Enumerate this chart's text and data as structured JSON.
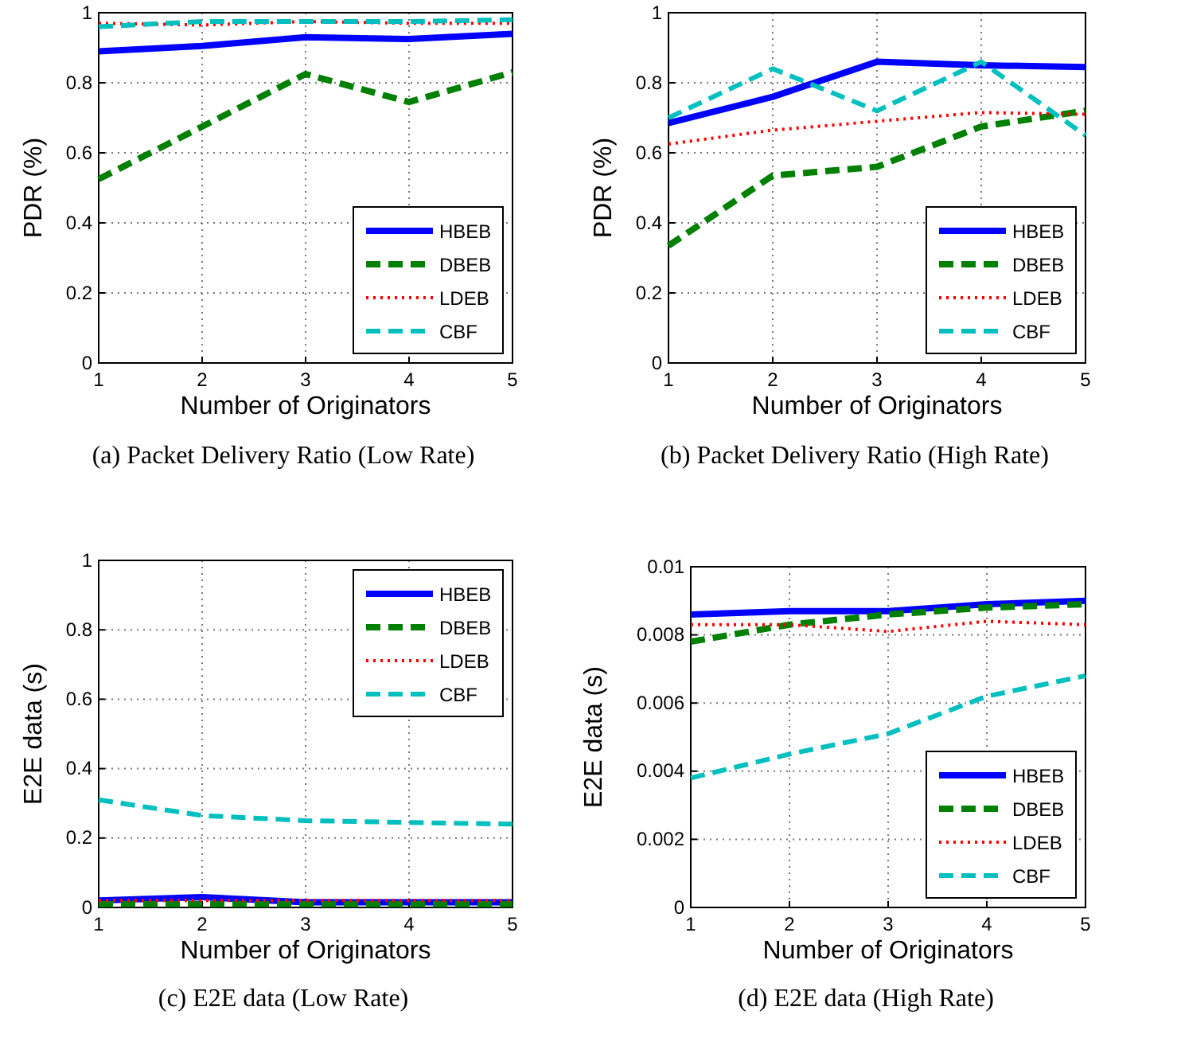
{
  "chart_data": [
    {
      "type": "line",
      "title": "(a) Packet Delivery Ratio (Low Rate)",
      "xlabel": "Number of Originators",
      "ylabel": "PDR (%)",
      "x": [
        1,
        2,
        3,
        4,
        5
      ],
      "xlim": [
        1,
        5
      ],
      "xticks": [
        1,
        2,
        3,
        4,
        5
      ],
      "ylim": [
        0,
        1
      ],
      "yticks": [
        0,
        0.2,
        0.4,
        0.6,
        0.8,
        1
      ],
      "grid": true,
      "legend": "bottom right",
      "series": [
        {
          "name": "HBEB",
          "color": "#0000ff",
          "line_style": "solid",
          "values": [
            0.89,
            0.905,
            0.93,
            0.925,
            0.94
          ]
        },
        {
          "name": "DBEB",
          "color": "#008000",
          "line_style": "dashed",
          "values": [
            0.525,
            0.675,
            0.825,
            0.745,
            0.83
          ]
        },
        {
          "name": "LDEB",
          "color": "#ff0000",
          "line_style": "dotted",
          "values": [
            0.97,
            0.965,
            0.975,
            0.97,
            0.97
          ]
        },
        {
          "name": "CBF",
          "color": "#00bfbf",
          "line_style": "dashed",
          "values": [
            0.96,
            0.975,
            0.975,
            0.975,
            0.98
          ]
        }
      ]
    },
    {
      "type": "line",
      "title": "(b) Packet Delivery Ratio (High Rate)",
      "xlabel": "Number of Originators",
      "ylabel": "PDR (%)",
      "x": [
        1,
        2,
        3,
        4,
        5
      ],
      "xlim": [
        1,
        5
      ],
      "xticks": [
        1,
        2,
        3,
        4,
        5
      ],
      "ylim": [
        0,
        1
      ],
      "yticks": [
        0,
        0.2,
        0.4,
        0.6,
        0.8,
        1
      ],
      "grid": true,
      "legend": "bottom right",
      "series": [
        {
          "name": "HBEB",
          "color": "#0000ff",
          "line_style": "solid",
          "values": [
            0.685,
            0.76,
            0.86,
            0.85,
            0.845
          ]
        },
        {
          "name": "DBEB",
          "color": "#008000",
          "line_style": "dashed",
          "values": [
            0.335,
            0.535,
            0.56,
            0.675,
            0.72
          ]
        },
        {
          "name": "LDEB",
          "color": "#ff0000",
          "line_style": "dotted",
          "values": [
            0.625,
            0.665,
            0.69,
            0.715,
            0.71
          ]
        },
        {
          "name": "CBF",
          "color": "#00bfbf",
          "line_style": "dashed",
          "values": [
            0.7,
            0.84,
            0.72,
            0.86,
            0.65
          ]
        }
      ]
    },
    {
      "type": "line",
      "title": "(c) E2E data (Low Rate)",
      "xlabel": "Number of Originators",
      "ylabel": "E2E data (s)",
      "x": [
        1,
        2,
        3,
        4,
        5
      ],
      "xlim": [
        1,
        5
      ],
      "xticks": [
        1,
        2,
        3,
        4,
        5
      ],
      "ylim": [
        0,
        1
      ],
      "yticks": [
        0,
        0.2,
        0.4,
        0.6,
        0.8,
        1
      ],
      "grid": true,
      "legend": "top right",
      "series": [
        {
          "name": "HBEB",
          "color": "#0000ff",
          "line_style": "solid",
          "values": [
            0.02,
            0.03,
            0.015,
            0.015,
            0.015
          ]
        },
        {
          "name": "DBEB",
          "color": "#008000",
          "line_style": "dashed",
          "values": [
            0.01,
            0.01,
            0.01,
            0.01,
            0.01
          ]
        },
        {
          "name": "LDEB",
          "color": "#ff0000",
          "line_style": "dotted",
          "values": [
            0.02,
            0.02,
            0.02,
            0.02,
            0.02
          ]
        },
        {
          "name": "CBF",
          "color": "#00bfbf",
          "line_style": "dashed",
          "values": [
            0.31,
            0.265,
            0.25,
            0.245,
            0.24
          ]
        }
      ]
    },
    {
      "type": "line",
      "title": "(d) E2E data (High Rate)",
      "xlabel": "Number of Originators",
      "ylabel": "E2E data (s)",
      "x": [
        1,
        2,
        3,
        4,
        5
      ],
      "xlim": [
        1,
        5
      ],
      "xticks": [
        1,
        2,
        3,
        4,
        5
      ],
      "ylim": [
        0,
        0.01
      ],
      "yticks": [
        0,
        0.002,
        0.004,
        0.006,
        0.008,
        0.01
      ],
      "grid": true,
      "legend": "bottom right",
      "series": [
        {
          "name": "HBEB",
          "color": "#0000ff",
          "line_style": "solid",
          "values": [
            0.0086,
            0.0087,
            0.0087,
            0.0089,
            0.009
          ]
        },
        {
          "name": "DBEB",
          "color": "#008000",
          "line_style": "dashed",
          "values": [
            0.0078,
            0.0083,
            0.0086,
            0.0088,
            0.0089
          ]
        },
        {
          "name": "LDEB",
          "color": "#ff0000",
          "line_style": "dotted",
          "values": [
            0.0083,
            0.0083,
            0.0081,
            0.0084,
            0.0083
          ]
        },
        {
          "name": "CBF",
          "color": "#00bfbf",
          "line_style": "dashed",
          "values": [
            0.0038,
            0.0045,
            0.0051,
            0.0062,
            0.0068
          ]
        }
      ]
    }
  ]
}
